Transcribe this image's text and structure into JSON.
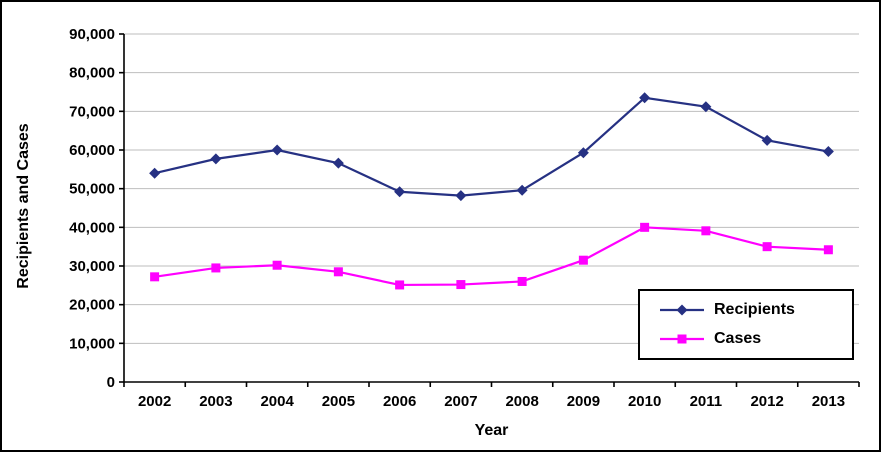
{
  "chart_data": {
    "type": "line",
    "x": [
      2002,
      2003,
      2004,
      2005,
      2006,
      2007,
      2008,
      2009,
      2010,
      2011,
      2012,
      2013
    ],
    "series": [
      {
        "name": "Recipients",
        "color": "#263183",
        "marker": "diamond",
        "values": [
          54000,
          57700,
          60000,
          56600,
          49200,
          48200,
          49600,
          59300,
          73500,
          71200,
          62500,
          59600
        ]
      },
      {
        "name": "Cases",
        "color": "#FF00FF",
        "marker": "square",
        "values": [
          27200,
          29500,
          30200,
          28500,
          25100,
          25200,
          26000,
          31500,
          40000,
          39100,
          35000,
          34200
        ]
      }
    ],
    "title": "",
    "xlabel": "Year",
    "ylabel": "Recipients and Cases",
    "ylim": [
      0,
      90000
    ],
    "ytick_step": 10000,
    "grid": true,
    "grid_color": "#BEBEBE",
    "legend_position": "bottom-right"
  }
}
